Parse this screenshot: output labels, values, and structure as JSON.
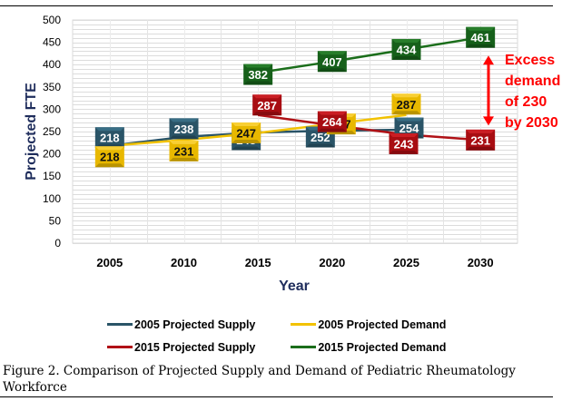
{
  "chart_data": {
    "type": "line",
    "title": "",
    "xlabel": "Year",
    "ylabel": "Projected FTE",
    "categories": [
      "2005",
      "2010",
      "2015",
      "2020",
      "2025",
      "2030"
    ],
    "ylim": [
      0,
      500
    ],
    "yticks": [
      0,
      50,
      100,
      150,
      200,
      250,
      300,
      350,
      400,
      450,
      500
    ],
    "grid": true,
    "legend_position": "bottom",
    "series": [
      {
        "name": "2005 Projected Supply",
        "color": "#2a5467",
        "values": [
          218,
          238,
          248,
          252,
          254,
          null
        ]
      },
      {
        "name": "2005 Projected Demand",
        "color": "#f2c200",
        "values": [
          218,
          231,
          247,
          267,
          287,
          null
        ]
      },
      {
        "name": "2015 Projected Supply",
        "color": "#b01116",
        "values": [
          null,
          null,
          287,
          264,
          243,
          231
        ]
      },
      {
        "name": "2015 Projected Demand",
        "color": "#1b6e1b",
        "values": [
          null,
          null,
          382,
          407,
          434,
          461
        ]
      }
    ],
    "annotation": {
      "lines": [
        "Excess",
        "demand",
        "of 230",
        "by 2030"
      ],
      "color": "#ff0000",
      "arrow_between": [
        231,
        461
      ],
      "at_category": "2030"
    }
  },
  "legend": {
    "items": [
      {
        "label": "2005 Projected Supply",
        "color": "#2a5467"
      },
      {
        "label": "2005 Projected Demand",
        "color": "#f2c200"
      },
      {
        "label": "2015 Projected Supply",
        "color": "#b01116"
      },
      {
        "label": "2015 Projected Demand",
        "color": "#1b6e1b"
      }
    ]
  },
  "caption": "Figure 2. Comparison of Projected Supply and Demand of Pediatric Rheumatology Workforce"
}
